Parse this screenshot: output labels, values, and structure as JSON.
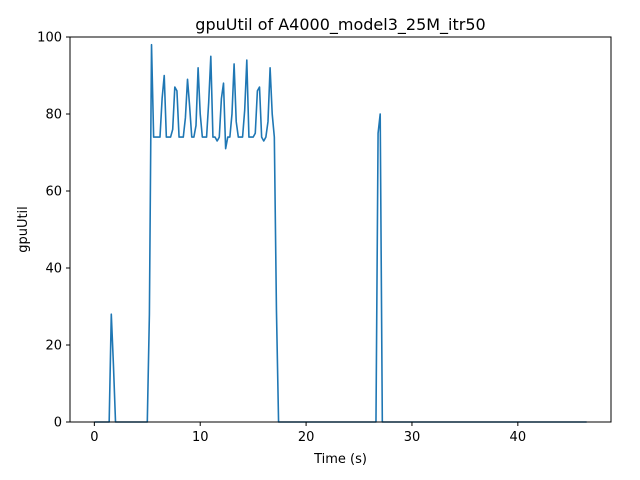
{
  "chart_data": {
    "type": "line",
    "title": "gpuUtil of A4000_model3_25M_itr50",
    "xlabel": "Time (s)",
    "ylabel": "gpuUtil",
    "xlim": [
      -2.3,
      48.8
    ],
    "ylim": [
      0,
      100
    ],
    "xticks": [
      0,
      10,
      20,
      30,
      40
    ],
    "yticks": [
      0,
      20,
      40,
      60,
      80,
      100
    ],
    "grid": false,
    "series": [
      {
        "color": "#1f77b4",
        "x": [
          0,
          0.2,
          0.4,
          0.6,
          0.8,
          1.0,
          1.2,
          1.4,
          1.6,
          1.8,
          2.0,
          2.2,
          2.4,
          2.6,
          2.8,
          3.0,
          3.2,
          3.4,
          3.6,
          3.8,
          4.0,
          4.2,
          4.4,
          4.6,
          4.8,
          5.0,
          5.2,
          5.4,
          5.6,
          5.8,
          6.0,
          6.2,
          6.4,
          6.6,
          6.8,
          7.0,
          7.2,
          7.4,
          7.6,
          7.8,
          8.0,
          8.2,
          8.4,
          8.6,
          8.8,
          9.0,
          9.2,
          9.4,
          9.6,
          9.8,
          10.0,
          10.2,
          10.4,
          10.6,
          10.8,
          11.0,
          11.2,
          11.4,
          11.6,
          11.8,
          12.0,
          12.2,
          12.4,
          12.6,
          12.8,
          13.0,
          13.2,
          13.4,
          13.6,
          13.8,
          14.0,
          14.2,
          14.4,
          14.6,
          14.8,
          15.0,
          15.2,
          15.4,
          15.6,
          15.8,
          16.0,
          16.2,
          16.4,
          16.6,
          16.8,
          17.0,
          17.2,
          17.4,
          17.6,
          17.8,
          18.0,
          19.0,
          20.0,
          22.0,
          24.0,
          26.0,
          26.6,
          26.8,
          27.0,
          27.2,
          27.4,
          28.0,
          30.0,
          35.0,
          40.0,
          45.0,
          46.5
        ],
        "y": [
          0,
          0,
          0,
          0,
          0,
          0,
          0,
          0,
          28,
          15,
          0,
          0,
          0,
          0,
          0,
          0,
          0,
          0,
          0,
          0,
          0,
          0,
          0,
          0,
          0,
          0,
          28,
          98,
          74,
          74,
          74,
          74,
          84,
          90,
          74,
          74,
          74,
          76,
          87,
          86,
          74,
          74,
          74,
          79,
          89,
          82,
          74,
          74,
          77,
          92,
          80,
          74,
          74,
          74,
          83,
          95,
          74,
          74,
          73,
          74,
          84,
          88,
          71,
          74,
          74,
          80,
          93,
          78,
          74,
          74,
          74,
          81,
          94,
          74,
          74,
          74,
          75,
          86,
          87,
          74,
          73,
          74,
          78,
          92,
          80,
          74,
          29,
          0,
          0,
          0,
          0,
          0,
          0,
          0,
          0,
          0,
          0,
          75,
          80,
          0,
          0,
          0,
          0,
          0,
          0,
          0,
          0
        ]
      }
    ]
  }
}
